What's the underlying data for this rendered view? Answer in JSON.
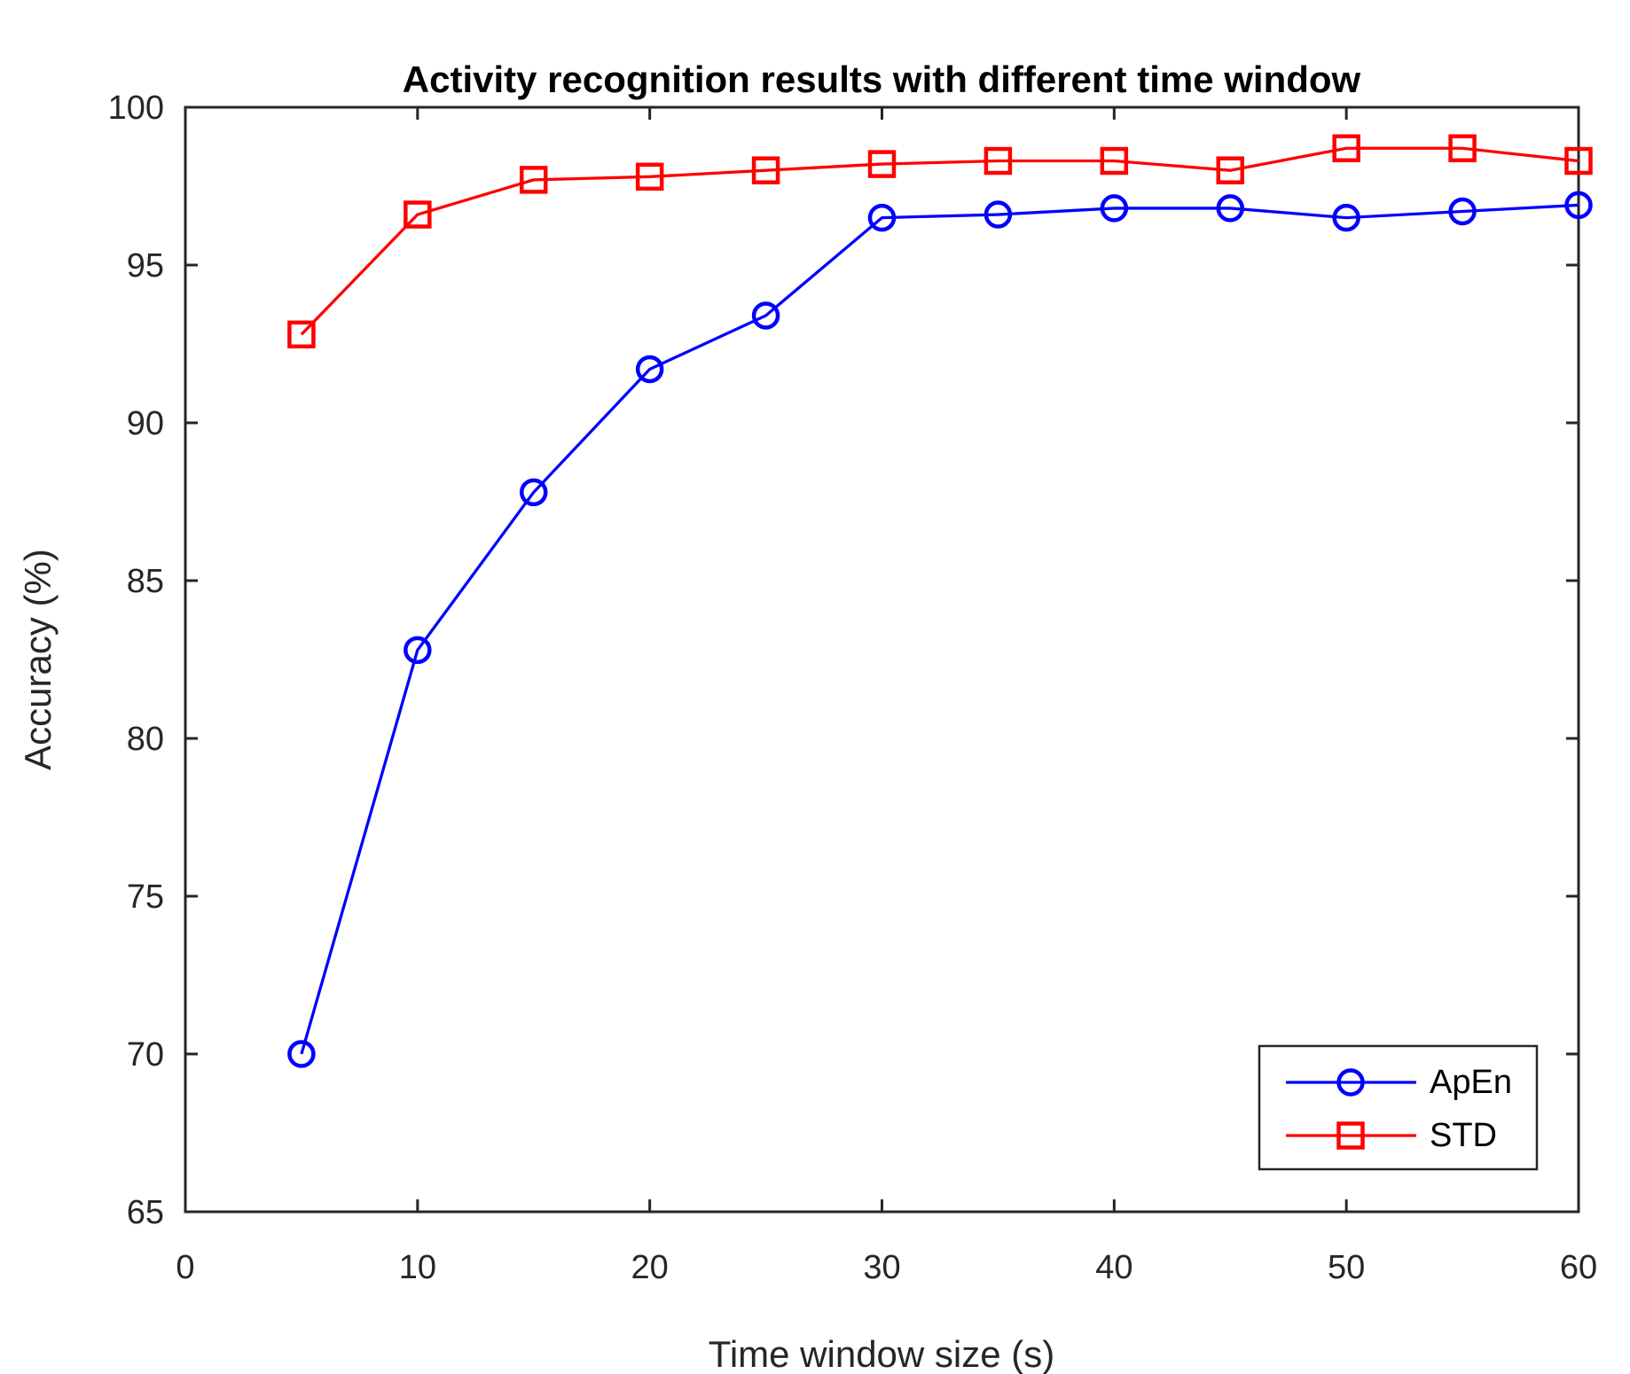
{
  "chart_data": {
    "type": "line",
    "title": "Activity recognition results with different time window",
    "xlabel": "Time window size (s)",
    "ylabel": "Accuracy (%)",
    "x": [
      5,
      10,
      15,
      20,
      25,
      30,
      35,
      40,
      45,
      50,
      55,
      60
    ],
    "series": [
      {
        "name": "ApEn",
        "color": "#0000ff",
        "marker": "circle",
        "values": [
          70.0,
          82.8,
          87.8,
          91.7,
          93.4,
          96.5,
          96.6,
          96.8,
          96.8,
          96.5,
          96.7,
          96.9
        ]
      },
      {
        "name": "STD",
        "color": "#ff0000",
        "marker": "square",
        "values": [
          92.8,
          96.6,
          97.7,
          97.8,
          98.0,
          98.2,
          98.3,
          98.3,
          98.0,
          98.7,
          98.7,
          98.3
        ]
      }
    ],
    "xlim": [
      0,
      60
    ],
    "ylim": [
      65,
      100
    ],
    "xticks": [
      0,
      10,
      20,
      30,
      40,
      50,
      60
    ],
    "yticks": [
      65,
      70,
      75,
      80,
      85,
      90,
      95,
      100
    ],
    "grid": false,
    "legend_position": "bottom-right",
    "axis_color": "#262626",
    "background": "#ffffff"
  }
}
